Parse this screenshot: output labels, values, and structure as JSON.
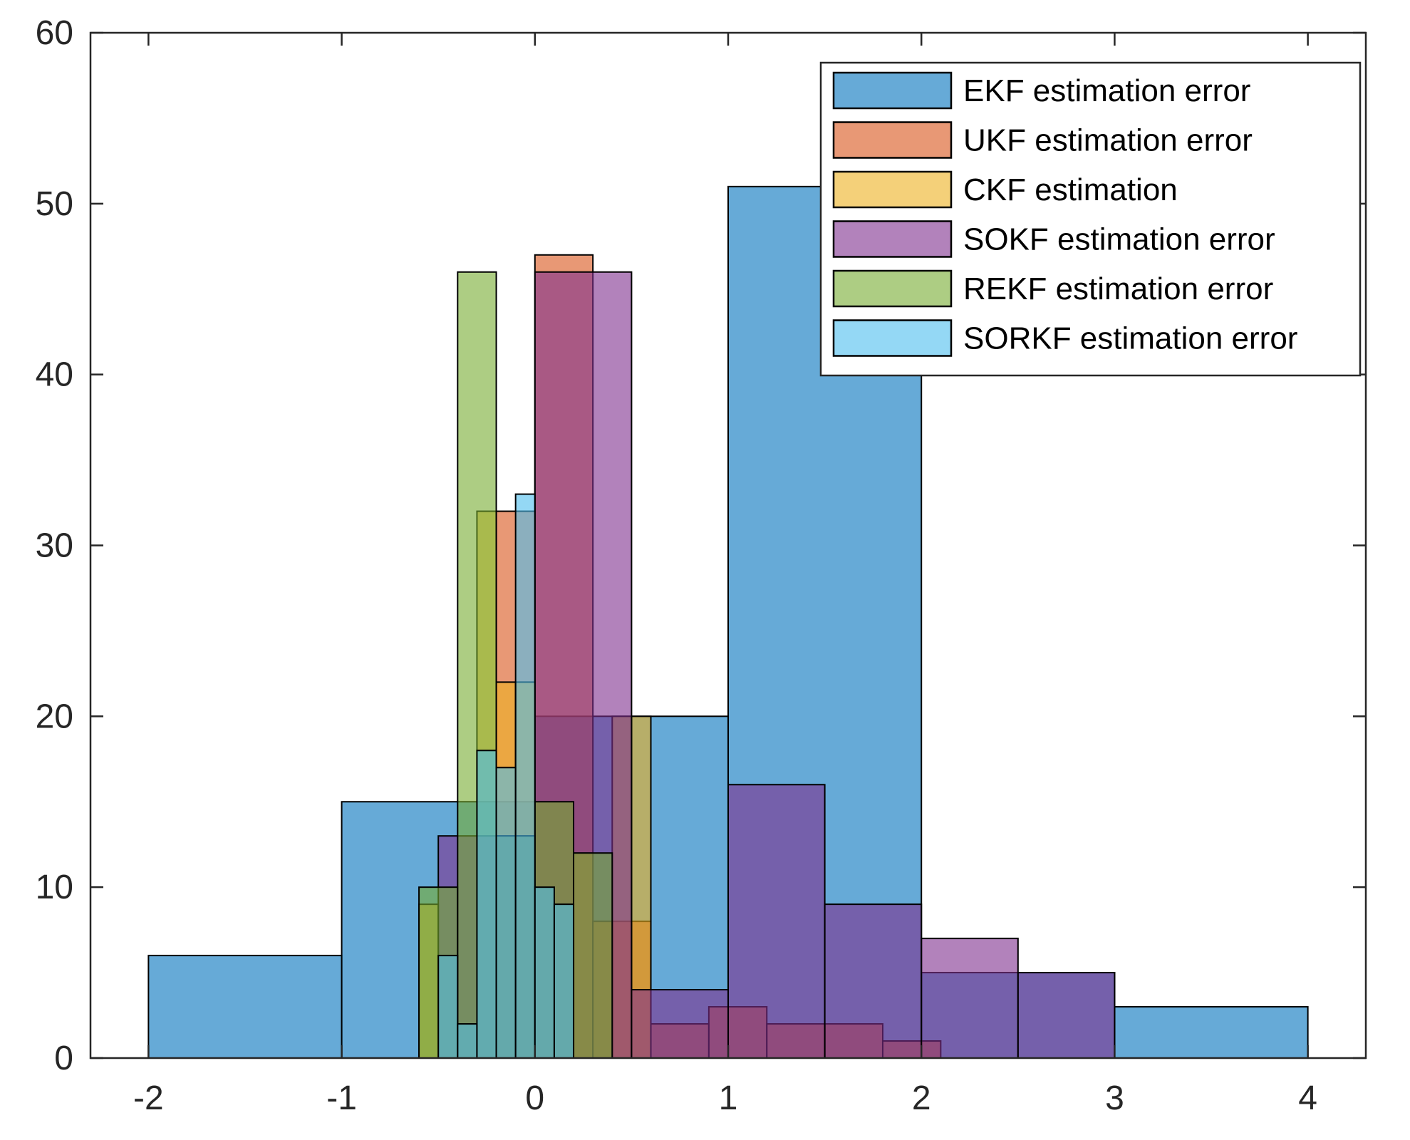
{
  "chart_data": {
    "type": "histogram",
    "title": "",
    "xlabel": "",
    "ylabel": "",
    "xlim": [
      -2.3,
      4.3
    ],
    "ylim": [
      0,
      60
    ],
    "xticks": [
      -2,
      -1,
      0,
      1,
      2,
      3,
      4
    ],
    "yticks": [
      0,
      10,
      20,
      30,
      40,
      50,
      60
    ],
    "xtick_labels": [
      "-2",
      "-1",
      "0",
      "1",
      "2",
      "3",
      "4"
    ],
    "ytick_labels": [
      "0",
      "10",
      "20",
      "30",
      "40",
      "50",
      "60"
    ],
    "grid": false,
    "legend_position": "top-right",
    "face_alpha": 0.6,
    "series": [
      {
        "name": "EKF estimation error",
        "color": "#0072BD",
        "bins": [
          {
            "x0": -2,
            "x1": -1,
            "value": 6
          },
          {
            "x0": -1,
            "x1": 0,
            "value": 15
          },
          {
            "x0": 0,
            "x1": 1,
            "value": 20
          },
          {
            "x0": 1,
            "x1": 2,
            "value": 51
          },
          {
            "x0": 2,
            "x1": 3,
            "value": 5
          },
          {
            "x0": 3,
            "x1": 4,
            "value": 3
          }
        ]
      },
      {
        "name": "UKF estimation error",
        "color": "#D95319",
        "bins": [
          {
            "x0": -0.2,
            "x1": 0,
            "value": 32
          },
          {
            "x0": 0,
            "x1": 0.3,
            "value": 47
          },
          {
            "x0": 0.3,
            "x1": 0.6,
            "value": 8
          },
          {
            "x0": 0.6,
            "x1": 0.9,
            "value": 2
          },
          {
            "x0": 0.9,
            "x1": 1.2,
            "value": 3
          },
          {
            "x0": 1.2,
            "x1": 1.5,
            "value": 2
          },
          {
            "x0": 1.5,
            "x1": 1.8,
            "value": 2
          },
          {
            "x0": 1.8,
            "x1": 2.1,
            "value": 1
          }
        ]
      },
      {
        "name": "CKF estimation",
        "color": "#EDB120",
        "bins": [
          {
            "x0": -0.6,
            "x1": -0.5,
            "value": 9
          },
          {
            "x0": -0.5,
            "x1": -0.4,
            "value": 6
          },
          {
            "x0": -0.4,
            "x1": -0.3,
            "value": 2
          },
          {
            "x0": -0.3,
            "x1": -0.2,
            "value": 32
          },
          {
            "x0": -0.2,
            "x1": -0.1,
            "value": 22
          },
          {
            "x0": -0.1,
            "x1": 0,
            "value": 22
          },
          {
            "x0": 0,
            "x1": 0.1,
            "value": 10
          },
          {
            "x0": 0.1,
            "x1": 0.2,
            "value": 9
          },
          {
            "x0": 0.2,
            "x1": 0.3,
            "value": 12
          },
          {
            "x0": 0.3,
            "x1": 0.4,
            "value": 8
          },
          {
            "x0": 0.4,
            "x1": 0.5,
            "value": 20
          },
          {
            "x0": 0.5,
            "x1": 0.6,
            "value": 20
          }
        ]
      },
      {
        "name": "SOKF estimation error",
        "color": "#7E2F8E",
        "bins": [
          {
            "x0": -0.5,
            "x1": 0,
            "value": 13
          },
          {
            "x0": 0,
            "x1": 0.5,
            "value": 46
          },
          {
            "x0": 0.5,
            "x1": 1,
            "value": 4
          },
          {
            "x0": 1,
            "x1": 1.5,
            "value": 16
          },
          {
            "x0": 1.5,
            "x1": 2,
            "value": 9
          },
          {
            "x0": 2,
            "x1": 2.5,
            "value": 7
          },
          {
            "x0": 2.5,
            "x1": 3,
            "value": 5
          }
        ]
      },
      {
        "name": "REKF estimation error",
        "color": "#77AC30",
        "bins": [
          {
            "x0": -0.6,
            "x1": -0.4,
            "value": 10
          },
          {
            "x0": -0.4,
            "x1": -0.2,
            "value": 46
          },
          {
            "x0": -0.2,
            "x1": 0,
            "value": 13
          },
          {
            "x0": 0,
            "x1": 0.2,
            "value": 15
          },
          {
            "x0": 0.2,
            "x1": 0.4,
            "value": 12
          }
        ]
      },
      {
        "name": "SORKF estimation error",
        "color": "#4DBEEE",
        "bins": [
          {
            "x0": -0.5,
            "x1": -0.4,
            "value": 6
          },
          {
            "x0": -0.4,
            "x1": -0.3,
            "value": 2
          },
          {
            "x0": -0.3,
            "x1": -0.2,
            "value": 18
          },
          {
            "x0": -0.2,
            "x1": -0.1,
            "value": 17
          },
          {
            "x0": -0.1,
            "x1": 0,
            "value": 33
          },
          {
            "x0": 0,
            "x1": 0.1,
            "value": 10
          },
          {
            "x0": 0.1,
            "x1": 0.2,
            "value": 9
          }
        ]
      }
    ]
  }
}
